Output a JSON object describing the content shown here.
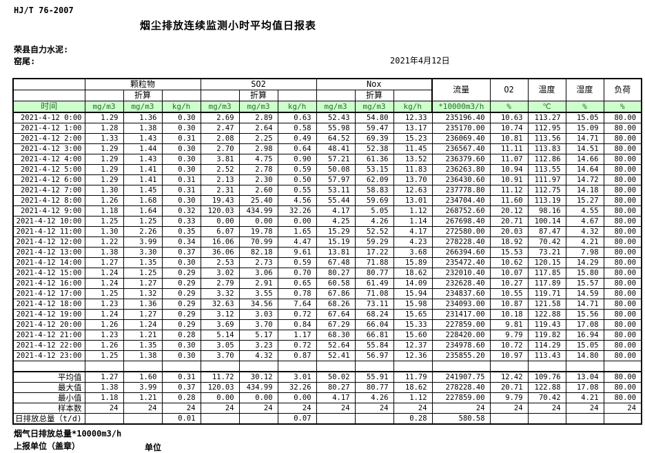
{
  "page": {
    "standard": "HJ/T  76-2007",
    "title": "烟尘排放连续监测小时平均值日报表",
    "company": "荣县自力水泥:",
    "location": "窑尾:",
    "date": "2021年4月12日"
  },
  "table": {
    "time_label": "时间",
    "converted_label": "折算",
    "col_groups": [
      "颗粒物",
      "SO2",
      "Nox"
    ],
    "single_columns": [
      "流量",
      "O2",
      "温度",
      "湿度",
      "负荷"
    ],
    "unit_row": [
      "mg/m3",
      "mg/m3",
      "kg/h",
      "mg/m3",
      "mg/m3",
      "kg/h",
      "mg/m3",
      "mg/m3",
      "kg/h",
      "*10000m3/h",
      "%",
      "℃",
      "%",
      "%"
    ],
    "rows": [
      {
        "time": "2021-4-12 0:00",
        "values": [
          "1.29",
          "1.36",
          "0.30",
          "2.69",
          "2.89",
          "0.63",
          "52.43",
          "54.80",
          "12.33",
          "235196.40",
          "10.63",
          "113.27",
          "15.05",
          "80.00"
        ]
      },
      {
        "time": "2021-4-12 1:00",
        "values": [
          "1.28",
          "1.38",
          "0.30",
          "2.47",
          "2.64",
          "0.58",
          "55.98",
          "59.47",
          "13.17",
          "235170.00",
          "10.74",
          "112.95",
          "15.09",
          "80.00"
        ]
      },
      {
        "time": "2021-4-12 2:00",
        "values": [
          "1.33",
          "1.43",
          "0.31",
          "2.08",
          "2.25",
          "0.49",
          "64.52",
          "69.39",
          "15.23",
          "236069.40",
          "10.81",
          "113.56",
          "14.71",
          "80.00"
        ]
      },
      {
        "time": "2021-4-12 3:00",
        "values": [
          "1.29",
          "1.44",
          "0.30",
          "2.70",
          "2.98",
          "0.64",
          "48.41",
          "52.38",
          "11.45",
          "236567.40",
          "11.11",
          "113.83",
          "14.51",
          "80.00"
        ]
      },
      {
        "time": "2021-4-12 4:00",
        "values": [
          "1.29",
          "1.43",
          "0.30",
          "3.81",
          "4.75",
          "0.90",
          "57.21",
          "61.36",
          "13.52",
          "236379.60",
          "11.07",
          "112.86",
          "14.66",
          "80.00"
        ]
      },
      {
        "time": "2021-4-12 5:00",
        "values": [
          "1.29",
          "1.41",
          "0.30",
          "2.52",
          "2.78",
          "0.59",
          "50.08",
          "53.15",
          "11.83",
          "236263.80",
          "10.94",
          "113.55",
          "14.64",
          "80.00"
        ]
      },
      {
        "time": "2021-4-12 6:00",
        "values": [
          "1.29",
          "1.41",
          "0.31",
          "2.13",
          "2.30",
          "0.50",
          "57.97",
          "62.09",
          "13.70",
          "236430.60",
          "10.91",
          "111.97",
          "14.72",
          "80.00"
        ]
      },
      {
        "time": "2021-4-12 7:00",
        "values": [
          "1.30",
          "1.45",
          "0.31",
          "2.31",
          "2.60",
          "0.55",
          "53.11",
          "58.83",
          "12.63",
          "237778.80",
          "11.12",
          "112.75",
          "14.18",
          "80.00"
        ]
      },
      {
        "time": "2021-4-12 8:00",
        "values": [
          "1.26",
          "1.68",
          "0.30",
          "19.43",
          "25.40",
          "4.56",
          "55.44",
          "59.69",
          "13.01",
          "234704.40",
          "11.60",
          "113.19",
          "15.27",
          "80.00"
        ]
      },
      {
        "time": "2021-4-12 9:00",
        "values": [
          "1.18",
          "1.64",
          "0.32",
          "120.03",
          "434.99",
          "32.26",
          "4.17",
          "5.05",
          "1.12",
          "268752.60",
          "20.12",
          "98.16",
          "4.55",
          "80.00"
        ]
      },
      {
        "time": "2021-4-12 10:00",
        "values": [
          "1.25",
          "1.25",
          "0.33",
          "0.00",
          "0.00",
          "0.00",
          "4.25",
          "4.26",
          "1.14",
          "267698.40",
          "20.71",
          "100.14",
          "4.67",
          "80.00"
        ]
      },
      {
        "time": "2021-4-12 11:00",
        "values": [
          "1.30",
          "2.26",
          "0.35",
          "6.07",
          "19.78",
          "1.65",
          "15.29",
          "52.52",
          "4.17",
          "272580.00",
          "20.03",
          "87.47",
          "4.32",
          "80.00"
        ]
      },
      {
        "time": "2021-4-12 12:00",
        "values": [
          "1.22",
          "3.99",
          "0.34",
          "16.06",
          "70.99",
          "4.47",
          "15.19",
          "59.29",
          "4.23",
          "278228.40",
          "18.92",
          "70.42",
          "4.21",
          "80.00"
        ]
      },
      {
        "time": "2021-4-12 13:00",
        "values": [
          "1.38",
          "3.30",
          "0.37",
          "36.06",
          "82.18",
          "9.61",
          "13.81",
          "17.22",
          "3.68",
          "266394.60",
          "15.53",
          "73.21",
          "7.98",
          "80.00"
        ]
      },
      {
        "time": "2021-4-12 14:00",
        "values": [
          "1.27",
          "1.35",
          "0.30",
          "2.53",
          "2.73",
          "0.59",
          "67.48",
          "71.88",
          "15.89",
          "235472.40",
          "10.62",
          "120.15",
          "14.29",
          "80.00"
        ]
      },
      {
        "time": "2021-4-12 15:00",
        "values": [
          "1.24",
          "1.25",
          "0.29",
          "3.02",
          "3.06",
          "0.70",
          "80.27",
          "80.77",
          "18.62",
          "232010.40",
          "10.07",
          "117.85",
          "15.80",
          "80.00"
        ]
      },
      {
        "time": "2021-4-12 16:00",
        "values": [
          "1.24",
          "1.27",
          "0.29",
          "2.79",
          "2.91",
          "0.65",
          "60.58",
          "61.49",
          "14.09",
          "232628.40",
          "10.27",
          "117.89",
          "15.57",
          "80.00"
        ]
      },
      {
        "time": "2021-4-12 17:00",
        "values": [
          "1.25",
          "1.32",
          "0.29",
          "3.32",
          "3.55",
          "0.78",
          "67.86",
          "71.08",
          "15.94",
          "234837.60",
          "10.55",
          "119.71",
          "14.59",
          "80.00"
        ]
      },
      {
        "time": "2021-4-12 18:00",
        "values": [
          "1.23",
          "1.36",
          "0.29",
          "32.63",
          "34.56",
          "7.64",
          "68.26",
          "73.11",
          "15.98",
          "234093.00",
          "10.87",
          "121.58",
          "14.71",
          "80.00"
        ]
      },
      {
        "time": "2021-4-12 19:00",
        "values": [
          "1.24",
          "1.27",
          "0.29",
          "3.12",
          "3.03",
          "0.72",
          "67.64",
          "68.24",
          "15.65",
          "231417.00",
          "10.18",
          "122.88",
          "15.56",
          "80.00"
        ]
      },
      {
        "time": "2021-4-12 20:00",
        "values": [
          "1.26",
          "1.24",
          "0.29",
          "3.69",
          "3.70",
          "0.84",
          "67.29",
          "66.04",
          "15.33",
          "227859.00",
          "9.81",
          "119.43",
          "17.08",
          "80.00"
        ]
      },
      {
        "time": "2021-4-12 21:00",
        "values": [
          "1.23",
          "1.21",
          "0.28",
          "5.14",
          "5.17",
          "1.17",
          "68.30",
          "66.81",
          "15.60",
          "228420.00",
          "9.79",
          "119.82",
          "16.94",
          "80.00"
        ]
      },
      {
        "time": "2021-4-12 22:00",
        "values": [
          "1.26",
          "1.35",
          "0.30",
          "3.05",
          "3.23",
          "0.72",
          "52.64",
          "55.84",
          "12.37",
          "234978.60",
          "10.72",
          "114.29",
          "15.05",
          "80.00"
        ]
      },
      {
        "time": "2021-4-12 23:00",
        "values": [
          "1.25",
          "1.38",
          "0.30",
          "3.70",
          "4.32",
          "0.87",
          "52.41",
          "56.97",
          "12.36",
          "235855.20",
          "10.97",
          "113.43",
          "14.80",
          "80.00"
        ]
      }
    ],
    "summary_rows": [
      {
        "label": "平均值",
        "values": [
          "1.27",
          "1.60",
          "0.31",
          "11.72",
          "30.12",
          "3.01",
          "50.02",
          "55.91",
          "11.79",
          "241907.75",
          "12.42",
          "109.76",
          "13.04",
          "80.00"
        ]
      },
      {
        "label": "最大值",
        "values": [
          "1.38",
          "3.99",
          "0.37",
          "120.03",
          "434.99",
          "32.26",
          "80.27",
          "80.77",
          "18.62",
          "278228.40",
          "20.71",
          "122.88",
          "17.08",
          "80.00"
        ]
      },
      {
        "label": "最小值",
        "values": [
          "1.18",
          "1.21",
          "0.28",
          "0.00",
          "0.00",
          "0.00",
          "4.17",
          "4.26",
          "1.12",
          "227859.00",
          "9.79",
          "70.42",
          "4.21",
          "80.00"
        ]
      },
      {
        "label": "样本数",
        "values": [
          "24",
          "24",
          "24",
          "24",
          "24",
          "24",
          "24",
          "24",
          "24",
          "24",
          "24",
          "24",
          "24",
          "24"
        ]
      },
      {
        "label": "日排放总量（t/d)",
        "values": [
          "",
          "",
          "0.01",
          "",
          "",
          "0.07",
          "",
          "",
          "0.28",
          "580.58",
          "",
          "",
          "",
          ""
        ]
      }
    ]
  },
  "colors": {
    "header_fill": "#ccffcc",
    "header_text": "#2d6a2d",
    "border": "#000000"
  },
  "footer": {
    "note": "烟气日排放总量*10000m3/h",
    "report_unit": "上报单位（盖章）",
    "unit": "单位"
  }
}
